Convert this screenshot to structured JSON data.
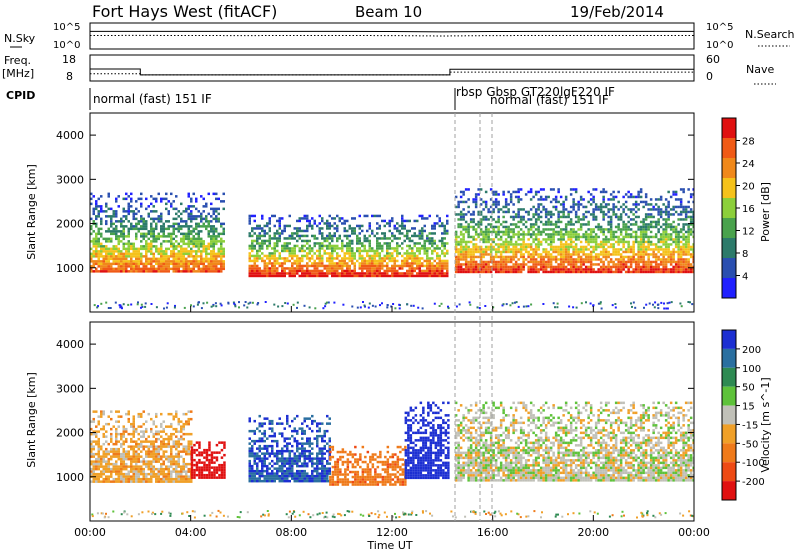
{
  "header": {
    "title": "Fort Hays West (fitACF)",
    "beam": "Beam 10",
    "date": "19/Feb/2014"
  },
  "strips": {
    "nsky_label": "N.Sky",
    "nsky_ticks": [
      "10^5",
      "10^0"
    ],
    "nsearch_label": "N.Search",
    "nsearch_ticks": [
      "10^5",
      "10^0"
    ],
    "freq_label_1": "Freq.",
    "freq_label_2": "[MHz]",
    "freq_ticks": [
      "18",
      "8"
    ],
    "nave_label": "Nave",
    "nave_ticks": [
      "60",
      "0"
    ],
    "cpid_label": "CPID",
    "cpid_segments": [
      {
        "start_hr": 0,
        "text": "normal (fast) 151 IF"
      },
      {
        "start_hr": 14.5,
        "text": "rbsp Gbsp GT220lgF220 IF"
      },
      {
        "start_hr": 16,
        "text": "normal (fast) 151 IF"
      }
    ]
  },
  "panels": {
    "ylabel": "Slant Range [km]",
    "xlabel": "Time UT",
    "y_ticks": [
      "1000",
      "2000",
      "3000",
      "4000"
    ],
    "x_ticks": [
      "00:00",
      "04:00",
      "08:00",
      "12:00",
      "16:00",
      "20:00",
      "00:00"
    ]
  },
  "colorbars": {
    "power": {
      "label": "Power [dB]",
      "ticks": [
        "4",
        "8",
        "12",
        "16",
        "20",
        "24",
        "28"
      ],
      "colors": [
        "#2020ff",
        "#2a4fb0",
        "#2c7a6a",
        "#49a24c",
        "#8ccf3a",
        "#f5c21b",
        "#f0881a",
        "#f05a16",
        "#e01010"
      ]
    },
    "velocity": {
      "label": "Velocity [m s^-1]",
      "ticks": [
        "200",
        "100",
        "50",
        "15",
        "-15",
        "-50",
        "-100",
        "-200"
      ],
      "colors": [
        "#1c2fd2",
        "#2a6fa0",
        "#2e8a52",
        "#5ec23a",
        "#c0c0b8",
        "#f0a028",
        "#ef7a1a",
        "#ee4a14",
        "#e01010"
      ]
    }
  },
  "chart_data": [
    {
      "type": "line",
      "title": "Fort Hays West (fitACF)",
      "series": [
        {
          "name": "N.Sky",
          "x": [
            0,
            2,
            4,
            6,
            8,
            10,
            12,
            14,
            16,
            18,
            20,
            22,
            24
          ],
          "values": [
            40000,
            42000,
            41000,
            40000,
            41000,
            40000,
            39000,
            30000,
            38000,
            40000,
            41000,
            40000,
            41000
          ]
        },
        {
          "name": "N.Search",
          "x": [
            0,
            2,
            4,
            6,
            8,
            10,
            12,
            14,
            16,
            18,
            20,
            22,
            24
          ],
          "values": [
            20000,
            21000,
            20000,
            19000,
            20000,
            20000,
            19000,
            15000,
            19000,
            20000,
            20000,
            20000,
            20000
          ]
        }
      ]
    },
    {
      "type": "line",
      "series": [
        {
          "name": "Freq.",
          "x": [
            0,
            2.0,
            2.0,
            14.3,
            14.3,
            24
          ],
          "values": [
            14.5,
            14.5,
            11,
            11,
            14.3,
            14.3
          ]
        },
        {
          "name": "Nave",
          "x": [
            0,
            2.0,
            2.0,
            14.3,
            14.3,
            24
          ],
          "values": [
            22,
            22,
            18,
            18,
            28,
            28
          ]
        }
      ]
    },
    {
      "type": "heatmap",
      "xlabel": "Time UT",
      "ylabel": "Slant Range [km]",
      "xlim": [
        0,
        24
      ],
      "ylim": [
        0,
        4500
      ],
      "colorbar": "Power [dB]",
      "colorbar_range": [
        0,
        30
      ],
      "echo_regions": [
        {
          "t_start": 0.0,
          "t_end": 5.3,
          "range_min": 900,
          "range_max": 2700,
          "peak_power_db": 26
        },
        {
          "t_start": 6.3,
          "t_end": 14.2,
          "range_min": 800,
          "range_max": 2200,
          "peak_power_db": 30
        },
        {
          "t_start": 14.5,
          "t_end": 24.0,
          "range_min": 900,
          "range_max": 2800,
          "peak_power_db": 28
        }
      ]
    },
    {
      "type": "heatmap",
      "xlabel": "Time UT",
      "ylabel": "Slant Range [km]",
      "xlim": [
        0,
        24
      ],
      "ylim": [
        0,
        4500
      ],
      "colorbar": "Velocity [m s^-1]",
      "colorbar_range": [
        -200,
        200
      ],
      "echo_regions": [
        {
          "t_start": 0.0,
          "t_end": 4.0,
          "range_min": 900,
          "range_max": 2500,
          "velocity": -30
        },
        {
          "t_start": 4.0,
          "t_end": 5.3,
          "range_min": 1000,
          "range_max": 1800,
          "velocity": -200
        },
        {
          "t_start": 6.3,
          "t_end": 9.5,
          "range_min": 900,
          "range_max": 2400,
          "velocity": 150
        },
        {
          "t_start": 9.5,
          "t_end": 12.5,
          "range_min": 800,
          "range_max": 1700,
          "velocity": -80
        },
        {
          "t_start": 12.5,
          "t_end": 14.2,
          "range_min": 1000,
          "range_max": 2700,
          "velocity": 200
        },
        {
          "t_start": 14.5,
          "t_end": 24.0,
          "range_min": 900,
          "range_max": 2700,
          "velocity": 0
        }
      ]
    }
  ]
}
